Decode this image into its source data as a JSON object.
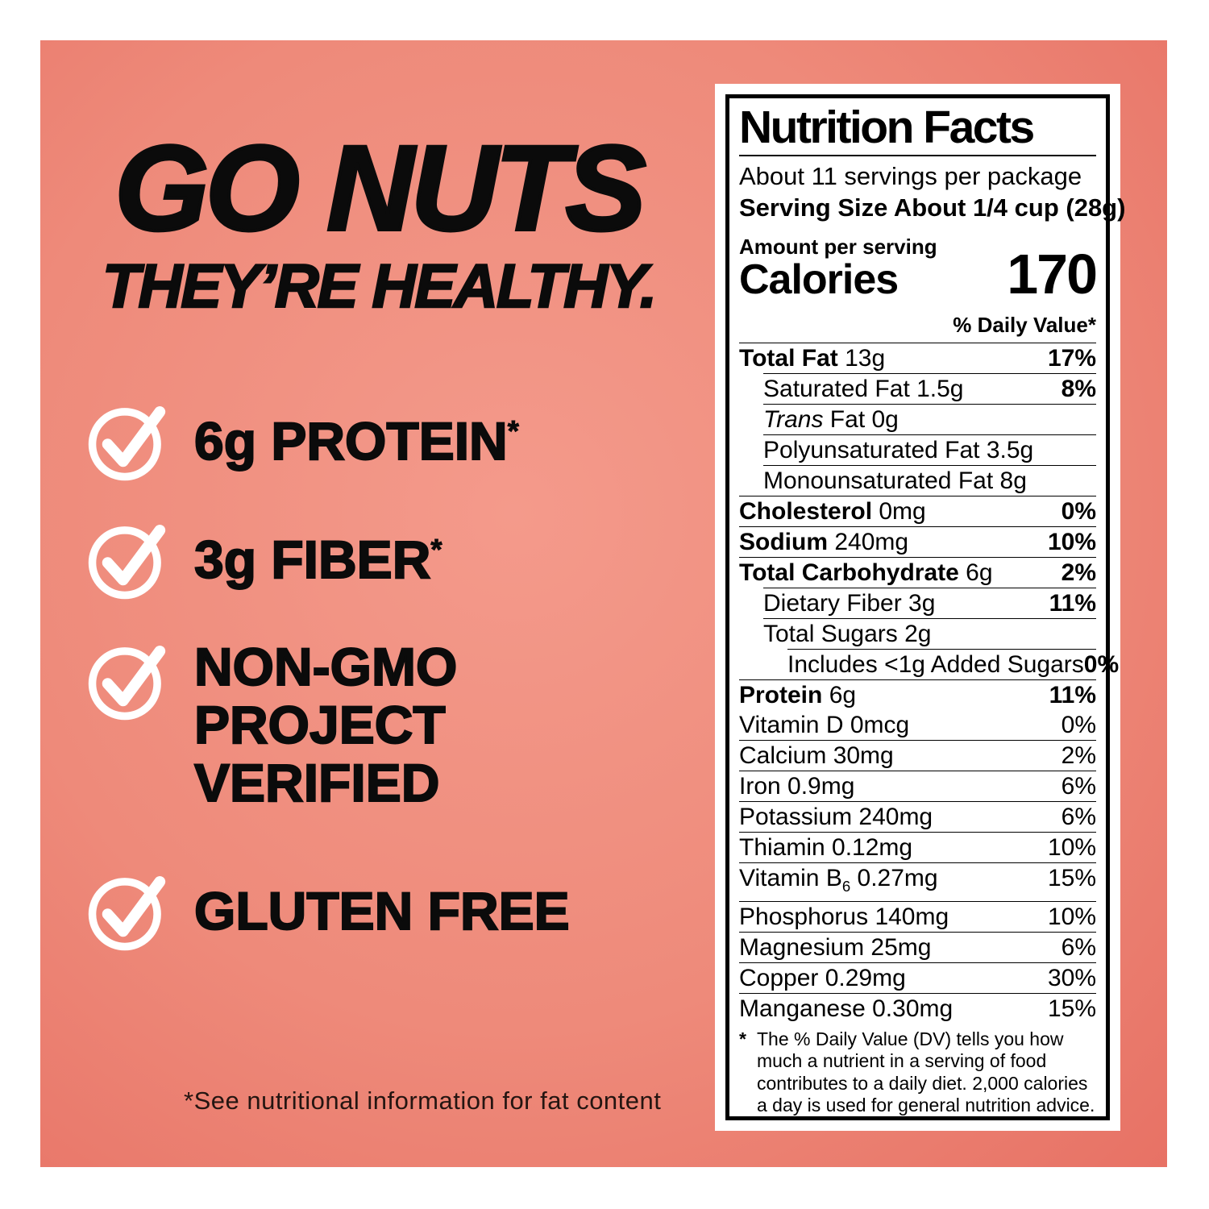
{
  "panel": {
    "gradient_center": "#f49a8b",
    "gradient_edge": "#e06054",
    "text_color": "#0b0b0b"
  },
  "left": {
    "headline_line1": "GO NUTS",
    "headline_line2": "THEY’RE HEALTHY.",
    "bullets": [
      {
        "lines": [
          "6g PROTEIN"
        ],
        "asterisk": true
      },
      {
        "lines": [
          "3g FIBER"
        ],
        "asterisk": true
      },
      {
        "lines": [
          "NON-GMO",
          "PROJECT",
          "VERIFIED"
        ],
        "asterisk": false
      },
      {
        "lines": [
          "GLUTEN FREE"
        ],
        "asterisk": false
      }
    ],
    "footnote": "*See nutritional information for fat content"
  },
  "label": {
    "title": "Nutrition Facts",
    "servings_per_package": "About 11 servings per package",
    "serving_size": "Serving Size About 1/4 cup (28g)",
    "amount_per_serving": "Amount per serving",
    "calories_label": "Calories",
    "calories_value": "170",
    "daily_value_header": "% Daily Value*",
    "rows": [
      {
        "parts": [
          {
            "t": "Total Fat",
            "b": true
          },
          {
            "t": " 13g"
          }
        ],
        "dv": "17%",
        "dvBold": true,
        "indent": 0
      },
      {
        "parts": [
          {
            "t": "Saturated Fat 1.5g"
          }
        ],
        "dv": "8%",
        "dvBold": true,
        "indent": 1
      },
      {
        "parts": [
          {
            "t": "Trans",
            "i": true
          },
          {
            "t": " Fat 0g"
          }
        ],
        "indent": 1
      },
      {
        "parts": [
          {
            "t": "Polyunsaturated Fat 3.5g"
          }
        ],
        "indent": 1
      },
      {
        "parts": [
          {
            "t": "Monounsaturated Fat 8g"
          }
        ],
        "indent": 1
      },
      {
        "parts": [
          {
            "t": "Cholesterol",
            "b": true
          },
          {
            "t": " 0mg"
          }
        ],
        "dv": "0%",
        "dvBold": true,
        "indent": 0
      },
      {
        "parts": [
          {
            "t": "Sodium",
            "b": true
          },
          {
            "t": " 240mg"
          }
        ],
        "dv": "10%",
        "dvBold": true,
        "indent": 0
      },
      {
        "parts": [
          {
            "t": "Total Carbohydrate",
            "b": true
          },
          {
            "t": " 6g"
          }
        ],
        "dv": "2%",
        "dvBold": true,
        "indent": 0
      },
      {
        "parts": [
          {
            "t": "Dietary Fiber 3g"
          }
        ],
        "dv": "11%",
        "dvBold": true,
        "indent": 1
      },
      {
        "parts": [
          {
            "t": "Total Sugars 2g"
          }
        ],
        "indent": 1
      },
      {
        "parts": [
          {
            "t": "Includes <1g Added Sugars"
          }
        ],
        "dv": "0%",
        "dvBold": true,
        "indent": 2
      },
      {
        "parts": [
          {
            "t": "Protein",
            "b": true
          },
          {
            "t": " 6g"
          }
        ],
        "dv": "11%",
        "dvBold": true,
        "indent": 0
      }
    ],
    "vitamins": [
      {
        "parts": [
          {
            "t": "Vitamin D 0mcg"
          }
        ],
        "dv": "0%"
      },
      {
        "parts": [
          {
            "t": "Calcium 30mg"
          }
        ],
        "dv": "2%"
      },
      {
        "parts": [
          {
            "t": "Iron 0.9mg"
          }
        ],
        "dv": "6%"
      },
      {
        "parts": [
          {
            "t": "Potassium 240mg"
          }
        ],
        "dv": "6%"
      },
      {
        "parts": [
          {
            "t": "Thiamin 0.12mg"
          }
        ],
        "dv": "10%"
      },
      {
        "parts": [
          {
            "t": "Vitamin B"
          },
          {
            "t": "6",
            "sub": true
          },
          {
            "t": " 0.27mg"
          }
        ],
        "dv": "15%"
      },
      {
        "parts": [
          {
            "t": "Phosphorus 140mg"
          }
        ],
        "dv": "10%"
      },
      {
        "parts": [
          {
            "t": "Magnesium 25mg"
          }
        ],
        "dv": "6%"
      },
      {
        "parts": [
          {
            "t": "Copper 0.29mg"
          }
        ],
        "dv": "30%"
      },
      {
        "parts": [
          {
            "t": "Manganese 0.30mg"
          }
        ],
        "dv": "15%"
      }
    ],
    "footnote_marker": "*",
    "footnote": "The % Daily Value (DV) tells you how much a nutrient in a serving of food contributes to a daily diet. 2,000 calories a day is used for general nutrition advice."
  }
}
